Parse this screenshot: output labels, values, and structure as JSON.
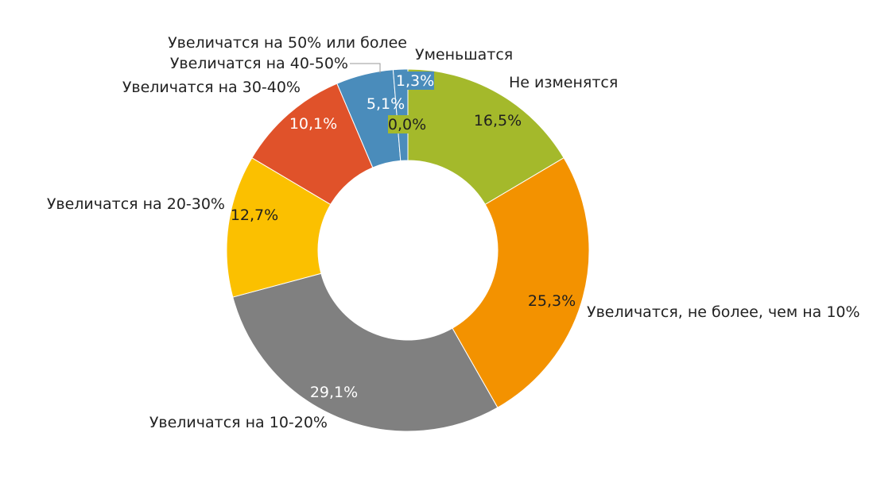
{
  "chart_data": {
    "type": "pie",
    "donut": true,
    "title": "",
    "legend": "none",
    "slices": [
      {
        "label": "Не изменятся",
        "value": 16.5,
        "value_label": "16,5%",
        "color": "#A4B92B",
        "value_color": "#1f1f1f"
      },
      {
        "label": "Увеличатся, не более, чем на 10%",
        "value": 25.3,
        "value_label": "25,3%",
        "color": "#F39200",
        "value_color": "#1f1f1f"
      },
      {
        "label": "Увеличатся на 10-20%",
        "value": 29.1,
        "value_label": "29,1%",
        "color": "#808080",
        "value_color": "#ffffff"
      },
      {
        "label": "Увеличатся на 20-30%",
        "value": 12.7,
        "value_label": "12,7%",
        "color": "#FBC000",
        "value_color": "#1f1f1f"
      },
      {
        "label": "Увеличатся на 30-40%",
        "value": 10.1,
        "value_label": "10,1%",
        "color": "#E0522A",
        "value_color": "#ffffff"
      },
      {
        "label": "Увеличатся на 40-50%",
        "value": 5.1,
        "value_label": "5,1%",
        "color": "#4A8CBB",
        "value_color": "#ffffff"
      },
      {
        "label": "Увеличатся на 50% или более",
        "value": 1.3,
        "value_label": "1,3%",
        "color": "#4A8CBB",
        "value_color": "#ffffff"
      },
      {
        "label": "Уменьшатся",
        "value": 0.0,
        "value_label": "0,0%",
        "color": "#A4B92B",
        "value_color": "#1f1f1f"
      }
    ]
  }
}
